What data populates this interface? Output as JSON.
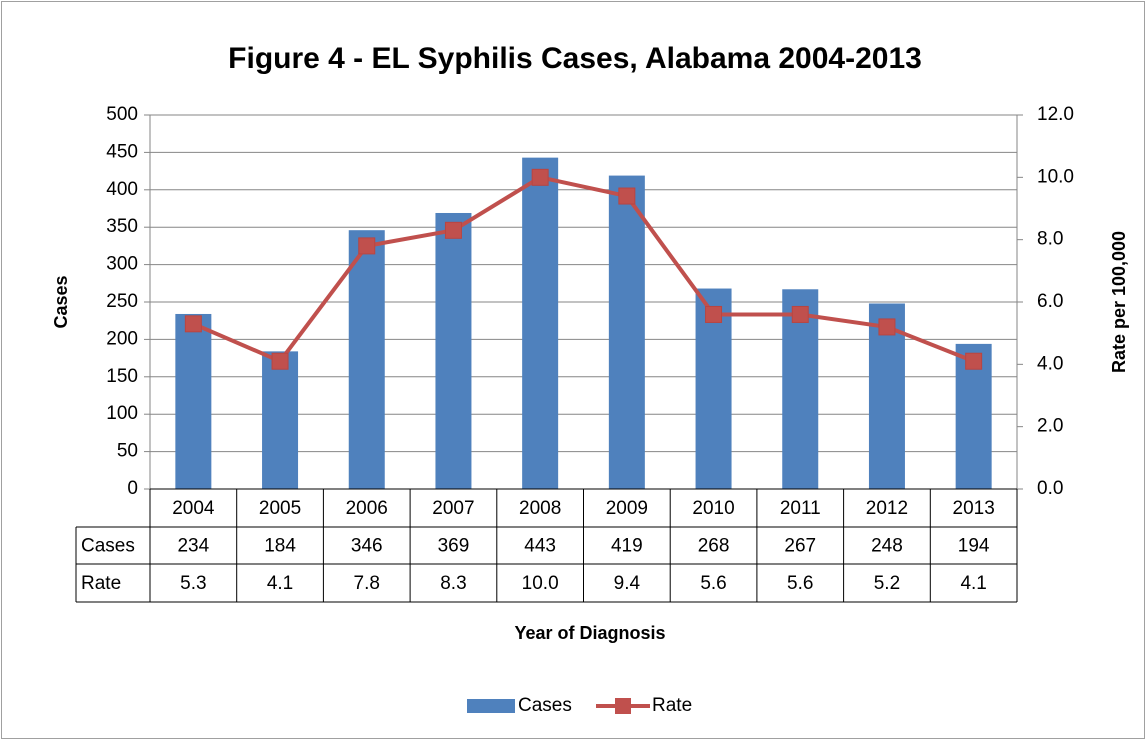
{
  "chart_data": {
    "type": "bar_line",
    "title": "Figure  4 - EL Syphilis Cases, Alabama 2004-2013",
    "x_label": "Year of Diagnosis",
    "y_label": "Cases",
    "y2_label": "Rate per 100,000",
    "categories": [
      "2004",
      "2005",
      "2006",
      "2007",
      "2008",
      "2009",
      "2010",
      "2011",
      "2012",
      "2013"
    ],
    "series": [
      {
        "name": "Cases",
        "type": "bar",
        "color": "#4f81bd",
        "values": [
          234,
          184,
          346,
          369,
          443,
          419,
          268,
          267,
          248,
          194
        ]
      },
      {
        "name": "Rate",
        "type": "line",
        "axis": "y2",
        "color": "#c0504d",
        "values": [
          5.3,
          4.1,
          7.8,
          8.3,
          10.0,
          9.4,
          5.6,
          5.6,
          5.2,
          4.1
        ],
        "value_labels": [
          "5.3",
          "4.1",
          "7.8",
          "8.3",
          "10.0",
          "9.4",
          "5.6",
          "5.6",
          "5.2",
          "4.1"
        ]
      }
    ],
    "ylim": [
      0,
      500
    ],
    "yticks": [
      0,
      50,
      100,
      150,
      200,
      250,
      300,
      350,
      400,
      450,
      500
    ],
    "y2lim": [
      0,
      12
    ],
    "y2ticks": [
      {
        "value": 0,
        "label": "0.0"
      },
      {
        "value": 2,
        "label": "2.0"
      },
      {
        "value": 4,
        "label": "4.0"
      },
      {
        "value": 6,
        "label": "6.0"
      },
      {
        "value": 8,
        "label": "8.0"
      },
      {
        "value": 10,
        "label": "10.0"
      },
      {
        "value": 12,
        "label": "12.0"
      }
    ],
    "grid": true,
    "legend": "bottom",
    "data_table": true
  }
}
